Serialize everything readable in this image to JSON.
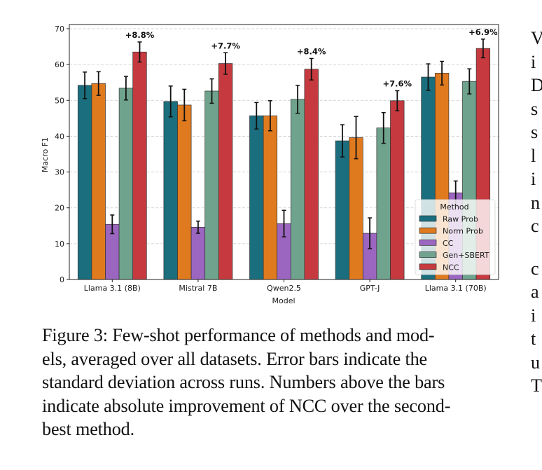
{
  "chart_data": {
    "type": "bar",
    "title": "",
    "xlabel": "Model",
    "ylabel": "Macro F1",
    "ylim": [
      0,
      70
    ],
    "yticks": [
      0,
      10,
      20,
      30,
      40,
      50,
      60,
      70
    ],
    "grid": "y-dashed",
    "categories": [
      "Llama 3.1 (8B)",
      "Mistral 7B",
      "Qwen2.5",
      "GPT-J",
      "Llama 3.1 (70B)"
    ],
    "legend": {
      "title": "Method",
      "position": "lower-right"
    },
    "series": [
      {
        "name": "Raw Prob",
        "color": "#1b6e7e",
        "values": [
          54.2,
          49.7,
          45.7,
          38.7,
          56.5
        ],
        "errors": [
          3.7,
          4.3,
          3.7,
          4.5,
          3.7
        ]
      },
      {
        "name": "Norm Prob",
        "color": "#e07a1f",
        "values": [
          54.7,
          48.7,
          45.7,
          39.6,
          57.6
        ],
        "errors": [
          3.3,
          4.4,
          4.2,
          5.9,
          3.3
        ]
      },
      {
        "name": "CC",
        "color": "#9b66bf",
        "values": [
          15.4,
          14.6,
          15.6,
          12.9,
          24.2
        ],
        "errors": [
          2.6,
          1.7,
          3.7,
          4.3,
          3.3
        ]
      },
      {
        "name": "Gen+SBERT",
        "color": "#6fa38d",
        "values": [
          53.4,
          52.6,
          50.3,
          42.3,
          55.3
        ],
        "errors": [
          3.3,
          3.4,
          3.9,
          4.3,
          3.5
        ]
      },
      {
        "name": "NCC",
        "color": "#c63a3f",
        "values": [
          63.5,
          60.3,
          58.7,
          49.9,
          64.5
        ],
        "errors": [
          2.8,
          3.0,
          3.0,
          2.8,
          2.6
        ]
      }
    ],
    "annotations": [
      "+8.8%",
      "+7.7%",
      "+8.4%",
      "+7.6%",
      "+6.9%"
    ]
  },
  "caption": "Figure 3: Few-shot performance of methods and models, averaged over all datasets. Error bars indicate the standard deviation across runs. Numbers above the bars indicate absolute improvement of NCC over the second-best method.",
  "caption_lines": [
    "Figure 3: Few-shot performance of methods and mod-",
    "els, averaged over all datasets. Error bars indicate the",
    "standard deviation across runs. Numbers above the bars",
    "indicate absolute improvement of NCC over the second-",
    "best method."
  ],
  "right_column_fragments": [
    "V",
    "i",
    "D",
    "s",
    "s",
    "l",
    "i",
    "n",
    "c",
    "",
    "c",
    "a",
    "i",
    "t",
    "u",
    "T"
  ]
}
